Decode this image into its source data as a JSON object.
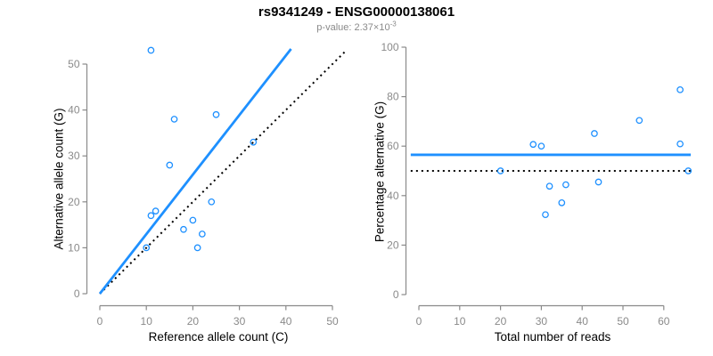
{
  "figure": {
    "title": "rs9341249 - ENSG00000138061",
    "subtitle_prefix": "p-value: 2.37×10",
    "subtitle_exponent": "-3"
  },
  "colors": {
    "accent_blue": "#1E90FF",
    "line_black": "#000000",
    "axis_gray": "#8a8a8a",
    "label_black": "#000000"
  },
  "chart_data": [
    {
      "type": "scatter",
      "panel": "left",
      "xlabel": "Reference allele count (C)",
      "ylabel": "Alternative allele count (G)",
      "xlim": [
        0,
        50
      ],
      "ylim": [
        0,
        53
      ],
      "grid": false,
      "xticks": [
        0,
        10,
        20,
        30,
        40,
        50
      ],
      "yticks": [
        0,
        10,
        20,
        30,
        40,
        50
      ],
      "points": [
        [
          10,
          10
        ],
        [
          11,
          17
        ],
        [
          11,
          53
        ],
        [
          12,
          18
        ],
        [
          15,
          28
        ],
        [
          16,
          38
        ],
        [
          18,
          14
        ],
        [
          20,
          16
        ],
        [
          21,
          10
        ],
        [
          22,
          13
        ],
        [
          24,
          20
        ],
        [
          25,
          39
        ],
        [
          33,
          33
        ]
      ],
      "lines": [
        {
          "name": "identity-line",
          "style": "dotted",
          "color": "line_black",
          "from": [
            0,
            0
          ],
          "to": [
            53,
            53
          ]
        },
        {
          "name": "fitted-ratio-line",
          "style": "solid",
          "color": "accent_blue",
          "from": [
            0,
            0
          ],
          "to": [
            41.1,
            53.3
          ]
        }
      ]
    },
    {
      "type": "scatter",
      "panel": "right",
      "xlabel": "Total number of reads",
      "ylabel": "Percentage alternative (G)",
      "xlim": [
        0,
        67
      ],
      "ylim": [
        0,
        100
      ],
      "grid": false,
      "xticks": [
        0,
        10,
        20,
        30,
        40,
        50,
        60
      ],
      "yticks": [
        0,
        20,
        40,
        60,
        80,
        100
      ],
      "points": [
        [
          20,
          50
        ],
        [
          28,
          60.7
        ],
        [
          30,
          60
        ],
        [
          31,
          32.3
        ],
        [
          32,
          43.8
        ],
        [
          35,
          37.1
        ],
        [
          36,
          44.4
        ],
        [
          43,
          65.1
        ],
        [
          44,
          45.5
        ],
        [
          54,
          70.4
        ],
        [
          64,
          60.9
        ],
        [
          64,
          82.8
        ],
        [
          66,
          50
        ]
      ],
      "lines": [
        {
          "name": "fifty-percent-line",
          "style": "dotted",
          "color": "line_black",
          "from": [
            -2,
            50
          ],
          "to": [
            66.6,
            50
          ]
        },
        {
          "name": "mean-percentage-line",
          "style": "solid",
          "color": "accent_blue",
          "from": [
            -2,
            56.5
          ],
          "to": [
            66.6,
            56.5
          ]
        }
      ]
    }
  ]
}
